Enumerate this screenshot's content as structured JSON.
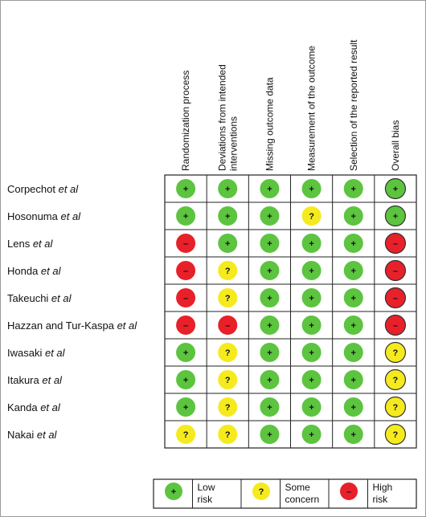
{
  "chart_data": {
    "type": "table",
    "title": "",
    "columns": [
      [
        "Randomization process"
      ],
      [
        "Deviations from intended",
        "interventions"
      ],
      [
        "Missing outcome data"
      ],
      [
        "Measurement of the outcome"
      ],
      [
        "Selection of the reported result"
      ],
      [
        "Overall bias"
      ]
    ],
    "studies": [
      {
        "name": "Corpechot",
        "suffix": " et al"
      },
      {
        "name": "Hosonuma",
        "suffix": " et al"
      },
      {
        "name": "Lens",
        "suffix": " et al"
      },
      {
        "name": "Honda",
        "suffix": " et al"
      },
      {
        "name": "Takeuchi",
        "suffix": " et al"
      },
      {
        "name": "Hazzan and Tur-Kaspa",
        "suffix": " et al"
      },
      {
        "name": "Iwasaki",
        "suffix": " et al"
      },
      {
        "name": "Itakura",
        "suffix": " et al"
      },
      {
        "name": "Kanda",
        "suffix": " et al"
      },
      {
        "name": "Nakai",
        "suffix": " et al"
      }
    ],
    "ratings": [
      [
        "low",
        "low",
        "low",
        "low",
        "low",
        "low"
      ],
      [
        "low",
        "low",
        "low",
        "some",
        "low",
        "low"
      ],
      [
        "high",
        "low",
        "low",
        "low",
        "low",
        "high"
      ],
      [
        "high",
        "some",
        "low",
        "low",
        "low",
        "high"
      ],
      [
        "high",
        "some",
        "low",
        "low",
        "low",
        "high"
      ],
      [
        "high",
        "high",
        "low",
        "low",
        "low",
        "high"
      ],
      [
        "low",
        "some",
        "low",
        "low",
        "low",
        "some"
      ],
      [
        "low",
        "some",
        "low",
        "low",
        "low",
        "some"
      ],
      [
        "low",
        "some",
        "low",
        "low",
        "low",
        "some"
      ],
      [
        "some",
        "some",
        "low",
        "low",
        "low",
        "some"
      ]
    ],
    "symbols": {
      "low": "+",
      "some": "?",
      "high": "–"
    },
    "colors": {
      "low": "#5cc43f",
      "some": "#f5ea1e",
      "high": "#e8202a"
    },
    "legend": [
      {
        "level": "low",
        "label": [
          "Low",
          "risk"
        ]
      },
      {
        "level": "some",
        "label": [
          "Some",
          "concern"
        ]
      },
      {
        "level": "high",
        "label": [
          "High",
          "risk"
        ]
      }
    ]
  }
}
